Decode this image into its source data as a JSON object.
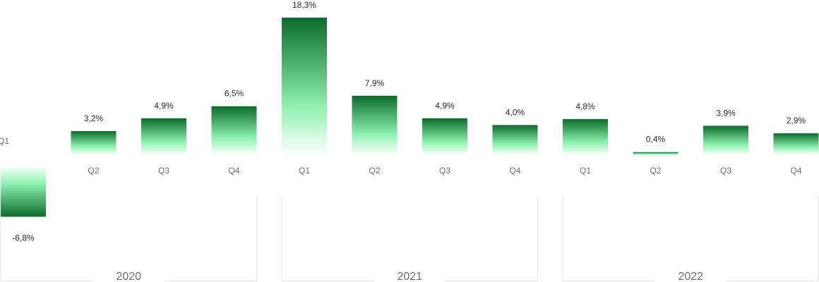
{
  "chart_data": {
    "type": "bar",
    "categories": [
      "Q1",
      "Q2",
      "Q3",
      "Q4",
      "Q1",
      "Q2",
      "Q3",
      "Q4",
      "Q1",
      "Q2",
      "Q3",
      "Q4"
    ],
    "values": [
      -6.8,
      3.2,
      4.9,
      6.5,
      18.3,
      7.9,
      4.9,
      4.0,
      4.8,
      0.4,
      3.9,
      2.9
    ],
    "value_labels": [
      "-6,8%",
      "3,2%",
      "4,9%",
      "6,5%",
      "18,3%",
      "7,9%",
      "4,9%",
      "4,0%",
      "4,8%",
      "0,4%",
      "3,9%",
      "2,9%"
    ],
    "groups": [
      {
        "label": "2020",
        "start": 0,
        "end": 3
      },
      {
        "label": "2021",
        "start": 4,
        "end": 7
      },
      {
        "label": "2022",
        "start": 8,
        "end": 11
      }
    ],
    "title": "",
    "xlabel": "",
    "ylabel": "",
    "ylim": [
      -6.8,
      18.3
    ],
    "grid": false,
    "legend": "none",
    "colors": {
      "bar_dark": "#0b6b2c",
      "bar_light": "#8ff2b0",
      "group_frame": "#e6e6e6"
    }
  }
}
